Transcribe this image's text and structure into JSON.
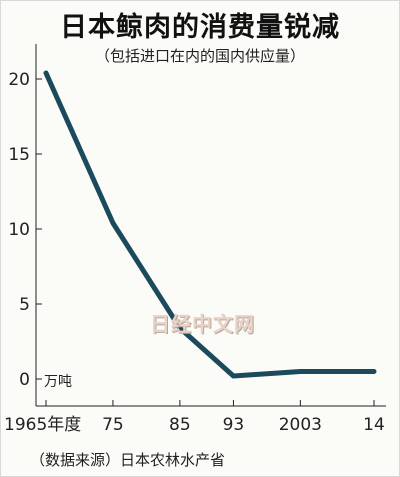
{
  "chart_data": {
    "type": "line",
    "title": "日本鲸肉的消费量锐减",
    "subtitle": "（包括进口在内的国内供应量）",
    "unit_label": "万吨",
    "source": "（数据来源）日本农林水产省",
    "x": [
      1965,
      1975,
      1985,
      1993,
      2003,
      2014
    ],
    "x_tick_labels": [
      "1965年度",
      "75",
      "85",
      "93",
      "2003",
      "14"
    ],
    "y_ticks": [
      0,
      5,
      10,
      15,
      20
    ],
    "ylim": [
      -2,
      22
    ],
    "series": [
      {
        "values": [
          20.4,
          10.4,
          3.4,
          0.2,
          0.5,
          0.5
        ]
      }
    ],
    "line_color": "#1b4a5c",
    "grid": false
  },
  "watermark": "日经中文网"
}
